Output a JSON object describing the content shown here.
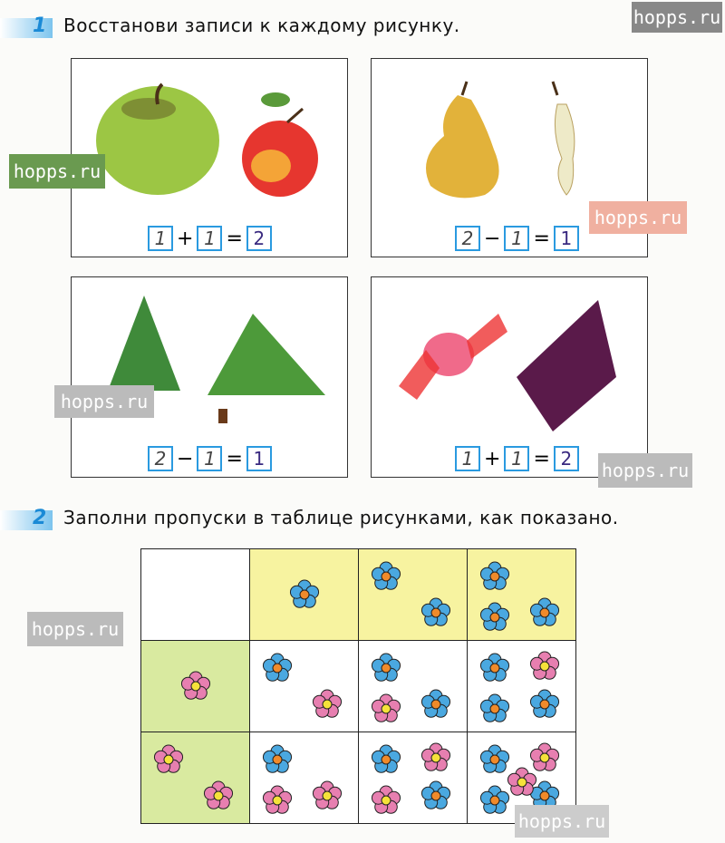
{
  "task1": {
    "number": "1",
    "text": "Восстанови записи к каждому рисунку.",
    "panels": [
      {
        "picture": "apple-and-small-apple",
        "eq": [
          "1",
          "+",
          "1",
          "=",
          "2"
        ]
      },
      {
        "picture": "pear-and-core",
        "eq": [
          "2",
          "−",
          "1",
          "=",
          "1"
        ]
      },
      {
        "picture": "two-fir-trees",
        "eq": [
          "2",
          "−",
          "1",
          "=",
          "1"
        ]
      },
      {
        "picture": "two-candies",
        "eq": [
          "1",
          "+",
          "1",
          "=",
          "2"
        ]
      }
    ]
  },
  "task2": {
    "number": "2",
    "text": "Заполни пропуски в таблице рисунками, как показано.",
    "colors": {
      "blue_flower": "#4aa8e0",
      "pink_flower": "#e77fb0",
      "yellow_cell": "#f7f3a0",
      "green_cell": "#d9eaa0"
    },
    "cells": [
      [
        {
          "bg": "white",
          "blue": 0,
          "pink": 0
        },
        {
          "bg": "yellow",
          "blue": 1,
          "pink": 0
        },
        {
          "bg": "yellow",
          "blue": 2,
          "pink": 0
        },
        {
          "bg": "yellow",
          "blue": 3,
          "pink": 0
        }
      ],
      [
        {
          "bg": "green",
          "blue": 0,
          "pink": 1
        },
        {
          "bg": "white",
          "blue": 1,
          "pink": 1
        },
        {
          "bg": "white",
          "blue": 2,
          "pink": 1
        },
        {
          "bg": "white",
          "blue": 3,
          "pink": 1
        }
      ],
      [
        {
          "bg": "green",
          "blue": 0,
          "pink": 2
        },
        {
          "bg": "white",
          "blue": 1,
          "pink": 2
        },
        {
          "bg": "white",
          "blue": 2,
          "pink": 2
        },
        {
          "bg": "white",
          "blue": 3,
          "pink": 2
        }
      ]
    ]
  },
  "watermark": "hopps.ru"
}
